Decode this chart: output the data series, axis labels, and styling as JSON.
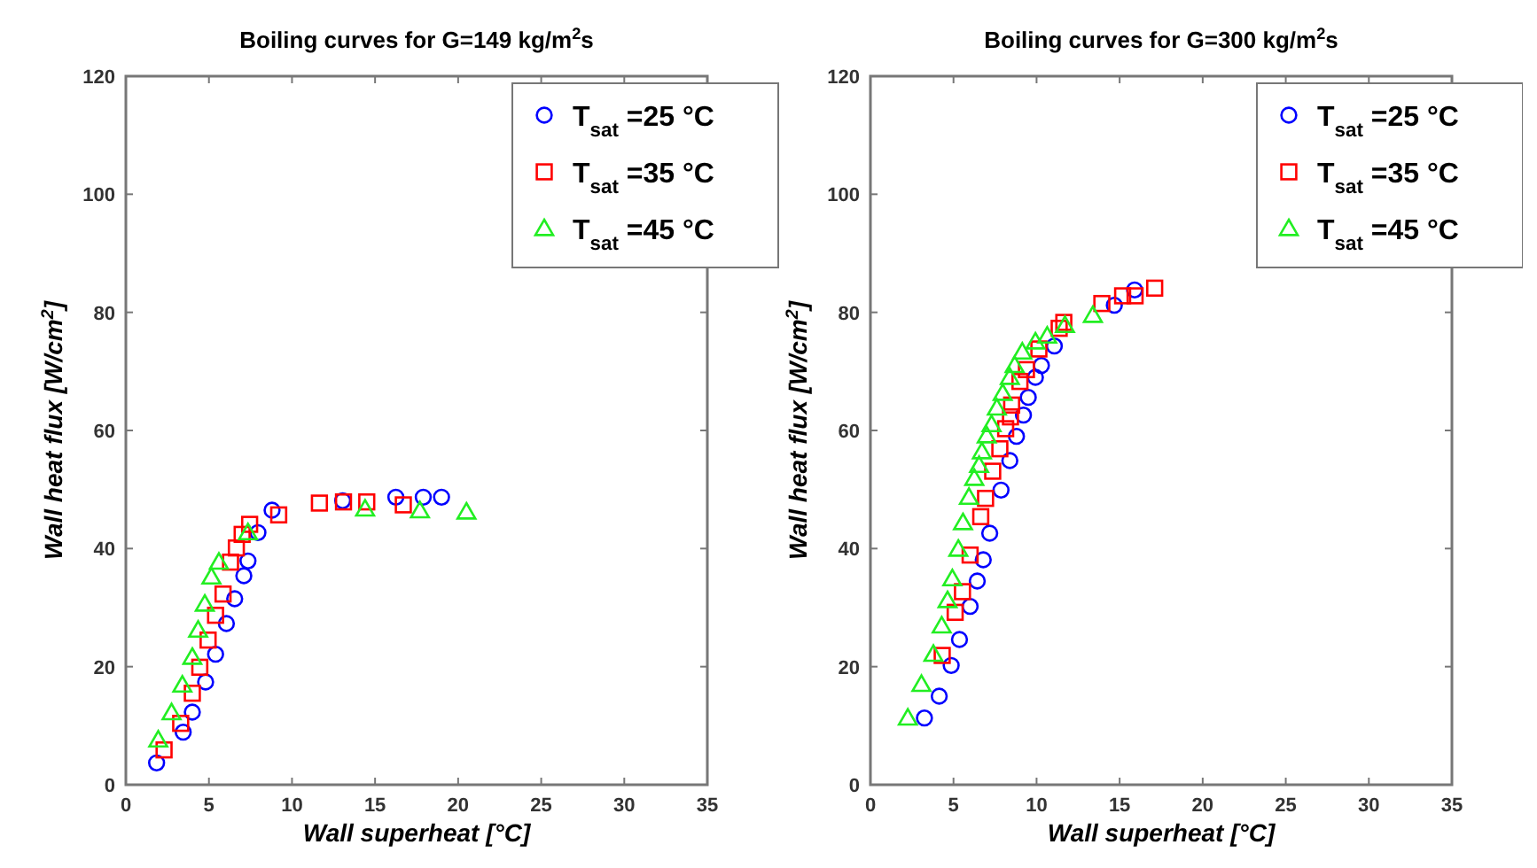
{
  "chart_data": [
    {
      "type": "scatter",
      "title": "Boiling curves for G=149 kg/m$^{2}$s",
      "xlabel": "Wall superheat [°C]",
      "ylabel": "Wall heat flux [W/cm$^{2}$]",
      "xlim": [
        0,
        35
      ],
      "ylim": [
        0,
        120
      ],
      "xticks": [
        0,
        5,
        10,
        15,
        20,
        25,
        30,
        35
      ],
      "yticks": [
        0,
        20,
        40,
        60,
        80,
        100,
        120
      ],
      "grid": false,
      "legend": "top right",
      "series": [
        {
          "name": "T$_{sat}$ =25 °C",
          "color": "#0000ff",
          "marker": "circle",
          "x": [
            1.85,
            3.45,
            4.0,
            4.8,
            5.4,
            6.05,
            6.55,
            7.1,
            7.35,
            7.95,
            8.8,
            13.05,
            16.25,
            17.9,
            19.0
          ],
          "values": [
            3.7,
            8.9,
            12.3,
            17.4,
            22.1,
            27.3,
            31.5,
            35.4,
            37.9,
            42.7,
            46.5,
            48.1,
            48.7,
            48.7,
            48.7
          ]
        },
        {
          "name": "T$_{sat}$ =35 °C",
          "color": "#ff0000",
          "marker": "square",
          "x": [
            2.3,
            3.3,
            4.0,
            4.45,
            4.95,
            5.4,
            5.85,
            6.3,
            6.65,
            7.0,
            7.45,
            9.2,
            11.65,
            13.1,
            14.5,
            16.7
          ],
          "values": [
            5.9,
            10.4,
            15.5,
            19.9,
            24.5,
            28.7,
            32.3,
            37.7,
            40.1,
            42.4,
            44.1,
            45.7,
            47.7,
            47.9,
            47.9,
            47.4
          ]
        },
        {
          "name": "T$_{sat}$ =45 °C",
          "color": "#22ee22",
          "marker": "triangle",
          "x": [
            1.95,
            2.75,
            3.4,
            4.0,
            4.35,
            4.75,
            5.15,
            5.6,
            7.35,
            14.4,
            17.7,
            20.5
          ],
          "values": [
            7.6,
            12.2,
            16.9,
            21.6,
            26.2,
            30.6,
            35.2,
            37.7,
            42.7,
            46.7,
            46.4,
            46.2
          ]
        }
      ]
    },
    {
      "type": "scatter",
      "title": "Boiling curves for G=300 kg/m$^{2}$s",
      "xlabel": "Wall superheat [°C]",
      "ylabel": "Wall heat flux [W/cm$^{2}$]",
      "xlim": [
        0,
        35
      ],
      "ylim": [
        0,
        120
      ],
      "xticks": [
        0,
        5,
        10,
        15,
        20,
        25,
        30,
        35
      ],
      "yticks": [
        0,
        20,
        40,
        60,
        80,
        100,
        120
      ],
      "grid": false,
      "legend": "top right",
      "series": [
        {
          "name": "T$_{sat}$ =25 °C",
          "color": "#0000ff",
          "marker": "circle",
          "x": [
            3.25,
            4.14,
            4.86,
            5.36,
            6.0,
            6.43,
            6.79,
            7.18,
            7.86,
            8.39,
            8.79,
            9.21,
            9.5,
            9.93,
            10.29,
            11.07,
            11.64,
            14.68,
            15.9
          ],
          "values": [
            11.3,
            15.0,
            20.2,
            24.6,
            30.2,
            34.5,
            38.1,
            42.6,
            49.9,
            54.9,
            59.0,
            62.6,
            65.6,
            69.0,
            71.0,
            74.3,
            null,
            81.2,
            83.8
          ]
        },
        {
          "name": "T$_{sat}$ =35 °C",
          "color": "#ff0000",
          "marker": "square",
          "x": [
            4.32,
            5.1,
            5.54,
            6.0,
            6.64,
            6.93,
            7.36,
            7.79,
            8.14,
            8.43,
            8.5,
            9.0,
            9.39,
            10.14,
            11.36,
            11.64,
            13.93,
            15.18,
            15.93,
            17.11
          ],
          "values": [
            21.9,
            29.2,
            32.7,
            38.9,
            45.4,
            48.5,
            53.1,
            56.9,
            60.3,
            62.3,
            64.3,
            68.3,
            70.3,
            73.8,
            77.3,
            78.3,
            81.5,
            82.8,
            82.8,
            84.1
          ]
        },
        {
          "name": "T$_{sat}$ =45 °C",
          "color": "#22ee22",
          "marker": "triangle",
          "x": [
            2.25,
            3.07,
            3.79,
            4.29,
            4.64,
            4.93,
            5.29,
            5.57,
            5.93,
            6.25,
            6.54,
            6.71,
            7.0,
            7.29,
            7.61,
            7.96,
            8.39,
            8.68,
            9.14,
            9.93,
            10.64,
            11.71,
            13.39
          ],
          "values": [
            11.3,
            17.0,
            22.1,
            26.9,
            31.2,
            34.9,
            39.9,
            44.4,
            48.7,
            51.9,
            54.1,
            56.4,
            59.1,
            61.0,
            63.8,
            66.3,
            69.0,
            71.0,
            73.3,
            75.0,
            76.0,
            77.8,
            79.5
          ]
        }
      ]
    }
  ]
}
